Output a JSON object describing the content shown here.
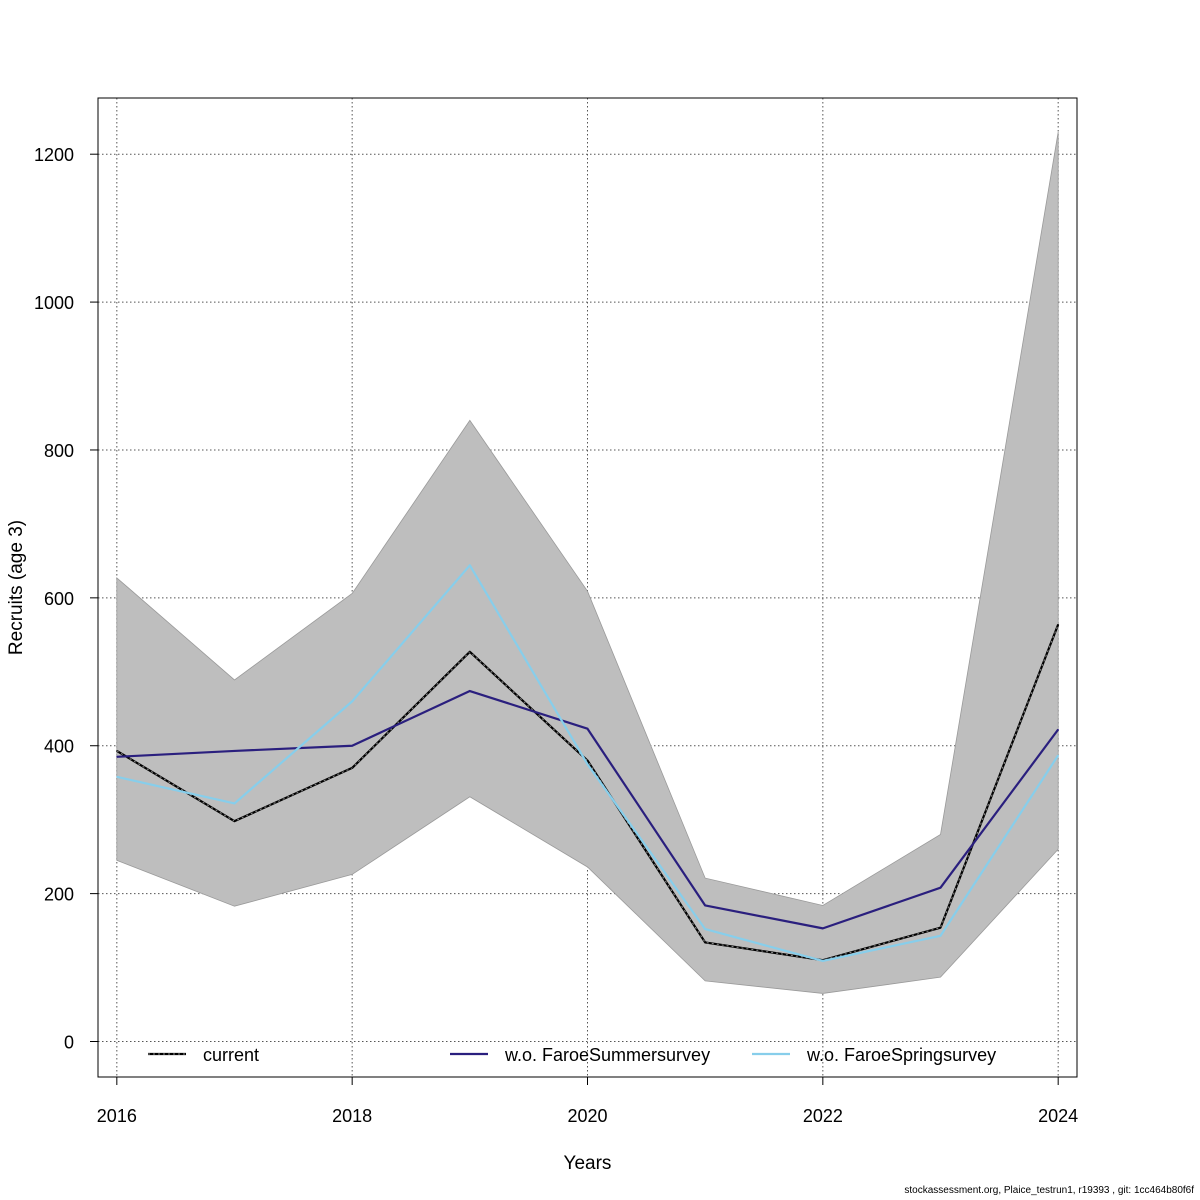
{
  "chart_data": {
    "type": "line",
    "xlabel": "Years",
    "ylabel": "Recruits (age 3)",
    "xlim": [
      2015.84,
      2024.16
    ],
    "ylim": [
      -48,
      1276
    ],
    "x": [
      2016,
      2017,
      2018,
      2019,
      2020,
      2021,
      2022,
      2023,
      2024
    ],
    "x_ticks": [
      2016,
      2018,
      2020,
      2022,
      2024
    ],
    "y_ticks": [
      0,
      200,
      400,
      600,
      800,
      1000,
      1200
    ],
    "grid": true,
    "confidence_band": {
      "name": "current",
      "color": "#bebebe",
      "lower": [
        245,
        183,
        226,
        331,
        236,
        82,
        65,
        87,
        260
      ],
      "upper": [
        627,
        489,
        606,
        840,
        609,
        221,
        184,
        280,
        1230
      ]
    },
    "series": [
      {
        "name": "current",
        "color": "#000000",
        "values": [
          393,
          298,
          370,
          527,
          380,
          134,
          110,
          154,
          564
        ]
      },
      {
        "name": "w.o. FaroeSummersurvey",
        "color": "#2a1f7e",
        "values": [
          385,
          393,
          400,
          474,
          423,
          184,
          153,
          208,
          422
        ]
      },
      {
        "name": "w.o. FaroeSpringsurvey",
        "color": "#87ceeb",
        "values": [
          358,
          322,
          460,
          644,
          375,
          152,
          109,
          143,
          387
        ]
      }
    ],
    "legend": {
      "placement": "bottom",
      "entries": [
        "current",
        "w.o. FaroeSummersurvey",
        "w.o. FaroeSpringsurvey"
      ]
    }
  },
  "footer": "stockassessment.org, Plaice_testrun1, r19393 , git: 1cc464b80f6f"
}
